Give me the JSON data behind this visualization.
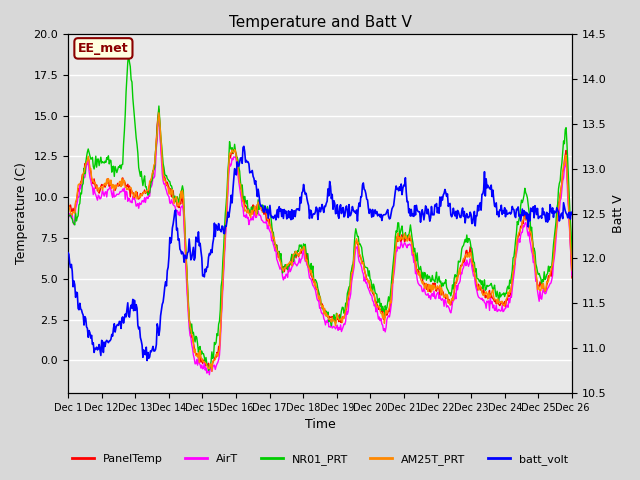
{
  "title": "Temperature and Batt V",
  "xlabel": "Time",
  "ylabel_left": "Temperature (C)",
  "ylabel_right": "Batt V",
  "annotation": "EE_met",
  "ylim_left": [
    -2,
    20
  ],
  "ylim_right": [
    10.5,
    14.5
  ],
  "x_ticks": [
    "Dec 1",
    "Dec 12",
    "Dec 13",
    "Dec 14",
    "Dec 15",
    "Dec 16",
    "Dec 17",
    "Dec 18",
    "Dec 19",
    "Dec 20",
    "Dec 21",
    "Dec 22",
    "Dec 23",
    "Dec 24",
    "Dec 25",
    "Dec 26"
  ],
  "background_color": "#e8e8e8",
  "plot_bg_color": "#f0f0f0",
  "series_colors": {
    "PanelTemp": "#ff0000",
    "AirT": "#ff00ff",
    "NR01_PRT": "#00cc00",
    "AM25T_PRT": "#ff8800",
    "batt_volt": "#0000ff"
  },
  "legend_entries": [
    "PanelTemp",
    "AirT",
    "NR01_PRT",
    "AM25T_PRT",
    "batt_volt"
  ]
}
